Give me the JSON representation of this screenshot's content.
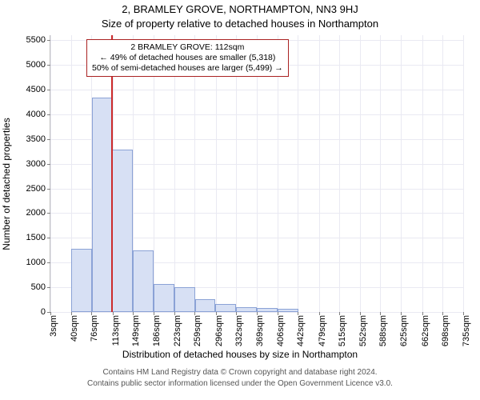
{
  "title": "2, BRAMLEY GROVE, NORTHAMPTON, NN3 9HJ",
  "subtitle": "Size of property relative to detached houses in Northampton",
  "xlabel": "Distribution of detached houses by size in Northampton",
  "ylabel": "Number of detached properties",
  "footer1": "Contains HM Land Registry data © Crown copyright and database right 2024.",
  "footer2": "Contains public sector information licensed under the Open Government Licence v3.0.",
  "title_fontsize": 13,
  "subtitle_fontsize": 13,
  "axis_label_fontsize": 12,
  "tick_fontsize": 11,
  "footer_fontsize": 10,
  "background_color": "#ffffff",
  "plot": {
    "type": "histogram",
    "ylim": [
      0,
      5600
    ],
    "ytick_step": 500,
    "yticks": [
      0,
      500,
      1000,
      1500,
      2000,
      2500,
      3000,
      3500,
      4000,
      4500,
      5000,
      5500
    ],
    "xlim": [
      3,
      735
    ],
    "xticks": [
      3,
      40,
      76,
      113,
      149,
      186,
      223,
      259,
      296,
      332,
      369,
      406,
      442,
      479,
      515,
      552,
      588,
      625,
      662,
      698,
      735
    ],
    "xtick_labels": [
      "3sqm",
      "40sqm",
      "76sqm",
      "113sqm",
      "149sqm",
      "186sqm",
      "223sqm",
      "259sqm",
      "296sqm",
      "332sqm",
      "369sqm",
      "406sqm",
      "442sqm",
      "479sqm",
      "515sqm",
      "552sqm",
      "588sqm",
      "625sqm",
      "662sqm",
      "698sqm",
      "735sqm"
    ],
    "grid_color": "#e9e9f2",
    "axis_color": "#bfbfbf",
    "bars": {
      "bin_width": 36.6,
      "values": [
        0,
        1280,
        4330,
        3290,
        1250,
        560,
        500,
        260,
        160,
        90,
        80,
        70,
        0,
        0,
        0,
        0,
        0,
        0,
        0,
        0
      ],
      "fill_color": "#d7e0f4",
      "border_color": "#8ba2d6"
    },
    "marker": {
      "x_value": 112,
      "color": "#cc2b2b",
      "line_width": 2
    },
    "callout": {
      "line1": "2 BRAMLEY GROVE: 112sqm",
      "line2": "← 49% of detached houses are smaller (5,318)",
      "line3": "50% of semi-detached houses are larger (5,499) →",
      "border_color": "#aa2222",
      "bg_color": "#ffffff"
    }
  }
}
